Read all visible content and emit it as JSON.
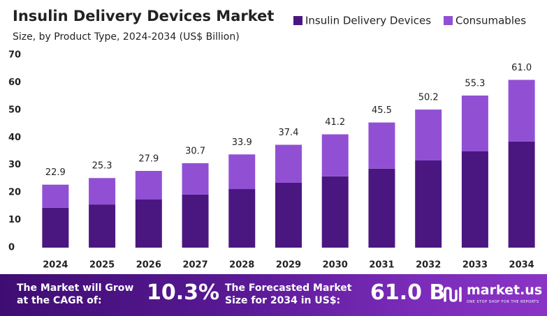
{
  "chart_data": {
    "type": "stacked-bar",
    "title": "Insulin Delivery Devices Market",
    "subtitle": "Size, by Product Type, 2024-2034 (US$ Billion)",
    "categories": [
      "2024",
      "2025",
      "2026",
      "2027",
      "2028",
      "2029",
      "2030",
      "2031",
      "2032",
      "2033",
      "2034"
    ],
    "series": [
      {
        "name": "Insulin Delivery Devices",
        "color": "#4a1780",
        "values": [
          14.5,
          15.7,
          17.5,
          19.3,
          21.3,
          23.6,
          25.9,
          28.7,
          31.7,
          35.0,
          38.6
        ]
      },
      {
        "name": "Consumables",
        "color": "#9150d4",
        "values": [
          8.4,
          9.6,
          10.4,
          11.4,
          12.6,
          13.8,
          15.3,
          16.8,
          18.5,
          20.3,
          22.4
        ]
      }
    ],
    "totals": [
      22.9,
      25.3,
      27.9,
      30.7,
      33.9,
      37.4,
      41.2,
      45.5,
      50.2,
      55.3,
      61.0
    ],
    "total_labels": [
      "22.9",
      "25.3",
      "27.9",
      "30.7",
      "33.9",
      "37.4",
      "41.2",
      "45.5",
      "50.2",
      "55.3",
      "61.0"
    ],
    "ylim": [
      0,
      70
    ],
    "yticks": [
      0,
      10,
      20,
      30,
      40,
      50,
      60,
      70
    ],
    "grid": false
  },
  "footer": {
    "cagr_text": "The Market will Grow at the CAGR of:",
    "cagr": "10.3%",
    "forecast_text": "The Forecasted Market Size for 2034 in US$:",
    "forecast": "61.0 B",
    "brand": "market.us",
    "tagline": "ONE STOP SHOP FOR THE REPORTS"
  }
}
